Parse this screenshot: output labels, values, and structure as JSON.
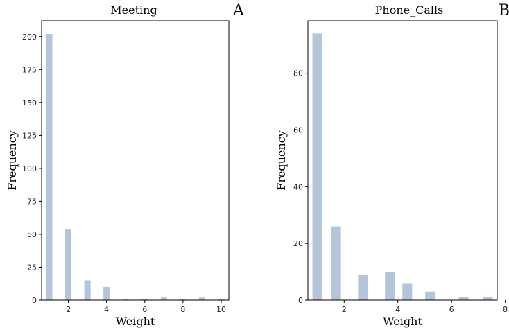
{
  "chart_data": [
    {
      "type": "bar",
      "panel_label": "A",
      "title": "Meeting",
      "xlabel": "Weight",
      "ylabel": "Frequency",
      "x": [
        1,
        2,
        3,
        4,
        5,
        6,
        7,
        8,
        9,
        10
      ],
      "values": [
        202,
        54,
        15,
        10,
        1,
        1,
        2,
        1,
        2,
        1
      ],
      "xticks": [
        2,
        4,
        6,
        8,
        10
      ],
      "yticks": [
        0,
        25,
        50,
        75,
        100,
        125,
        150,
        175,
        200
      ],
      "xlim": [
        0.6,
        10.4
      ],
      "ylim": [
        0,
        212
      ],
      "bar_color": "#b4c4d9",
      "grid": false,
      "legend": "none"
    },
    {
      "type": "bar",
      "panel_label": "B",
      "title": "Phone_Calls",
      "xlabel": "Weight",
      "ylabel": "Frequency",
      "x": [
        1,
        1.7,
        2.7,
        3.7,
        4.35,
        5.2,
        6.45,
        7.35
      ],
      "values": [
        94,
        26,
        9,
        10,
        6,
        3,
        1,
        1
      ],
      "xticks": [
        2,
        4,
        6,
        8
      ],
      "yticks": [
        0,
        20,
        40,
        60,
        80
      ],
      "xlim": [
        0.65,
        7.7
      ],
      "ylim": [
        0,
        98.5
      ],
      "bar_color": "#b4c4d9",
      "grid": false,
      "legend": "none"
    }
  ]
}
